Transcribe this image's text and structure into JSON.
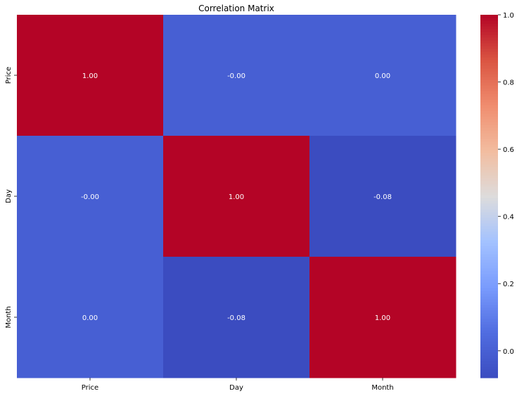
{
  "chart_data": {
    "type": "heatmap",
    "title": "Correlation Matrix",
    "x_categories": [
      "Price",
      "Day",
      "Month"
    ],
    "y_categories": [
      "Price",
      "Day",
      "Month"
    ],
    "values": [
      [
        1.0,
        -0.0,
        0.0
      ],
      [
        -0.0,
        1.0,
        -0.08
      ],
      [
        0.0,
        -0.08,
        1.0
      ]
    ],
    "cell_labels": [
      [
        "1.00",
        "-0.00",
        "0.00"
      ],
      [
        "-0.00",
        "1.00",
        "-0.08"
      ],
      [
        "0.00",
        "-0.08",
        "1.00"
      ]
    ],
    "colormap": "coolwarm",
    "colorbar": {
      "range": [
        -0.08,
        1.0
      ],
      "ticks": [
        -0.0,
        0.2,
        0.4,
        0.6,
        0.8,
        1.0
      ],
      "tick_labels": [
        "0.0",
        "0.2",
        "0.4",
        "0.6",
        "0.8",
        "1.0"
      ]
    },
    "grid": false
  },
  "colors": {
    "text": "#000000",
    "annotation": "#ffffff"
  }
}
